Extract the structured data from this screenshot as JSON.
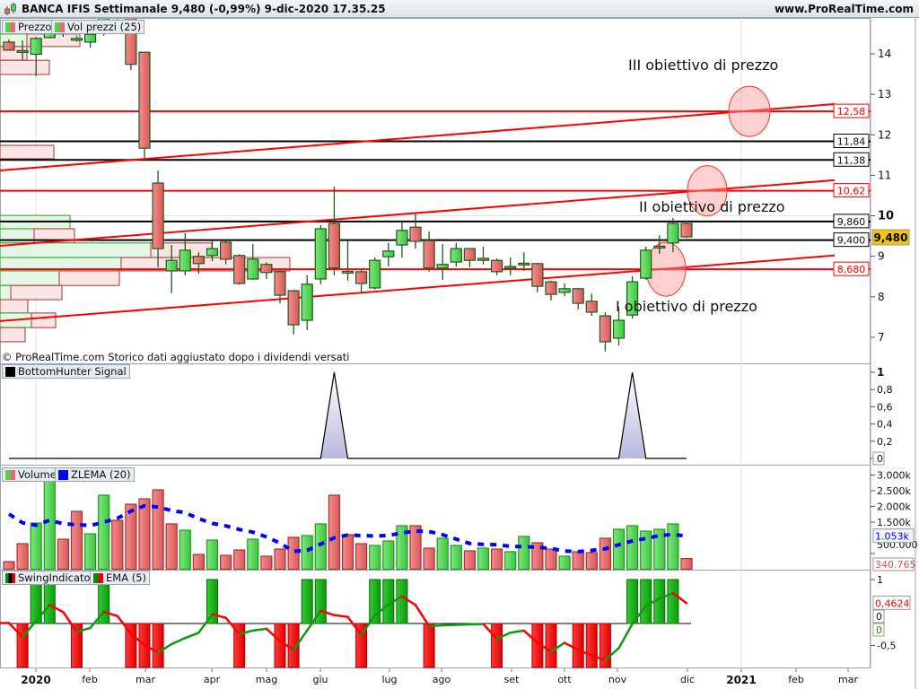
{
  "window": {
    "title": "BANCA IFIS Settimanale 9,480 (-0,99%) 9-dic-2020 17.35.25",
    "site": "www.ProRealTime.com",
    "note": "© ProRealTime.com  Storico dati aggiustato dopo i dividendi versati"
  },
  "colors": {
    "up": "#4fd34f",
    "down": "#e86a6a",
    "line_red": "#ff0000",
    "zlema": "#0000ff",
    "last_price_bg": "#f5c400"
  },
  "legends": {
    "price": "Prezzo",
    "volume_profile": "Vol prezzi (25)",
    "bottom_hunter": "BottomHunter Signal",
    "volume": "Volume",
    "zlema": "ZLEMA (20)",
    "swing": "SwingIndicator",
    "ema": "EMA (5)"
  },
  "price_axis": {
    "ticks": [
      "14",
      "13",
      "12",
      "11",
      "10",
      "9",
      "8",
      "7"
    ],
    "last_price": "9,480"
  },
  "levels": [
    {
      "value": 12.58,
      "label": "12,58",
      "color": "red"
    },
    {
      "value": 11.84,
      "label": "11,84",
      "color": "black"
    },
    {
      "value": 11.38,
      "label": "11,38",
      "color": "black"
    },
    {
      "value": 10.62,
      "label": "10,62",
      "color": "red"
    },
    {
      "value": 9.86,
      "label": "9,860",
      "color": "black"
    },
    {
      "value": 9.4,
      "label": "9,400",
      "color": "black"
    },
    {
      "value": 8.68,
      "label": "8,680",
      "color": "red"
    }
  ],
  "trendlines": [
    {
      "start_price": 11.12,
      "end_price": 12.76
    },
    {
      "start_price": 9.26,
      "end_price": 10.88
    },
    {
      "start_price": 7.4,
      "end_price": 9.02
    }
  ],
  "targets": [
    {
      "label": "III obiettivo di prezzo",
      "price": 12.58
    },
    {
      "label": "II obiettivo di prezzo",
      "price": 10.62
    },
    {
      "label": "I obiettivo di prezzo",
      "price": 8.68
    }
  ],
  "chart_data": {
    "type": "candlestick",
    "x_labels": [
      "2020",
      "feb",
      "mar",
      "apr",
      "mag",
      "giu",
      "lug",
      "ago",
      "set",
      "ott",
      "nov",
      "dic",
      "2021",
      "feb",
      "mar"
    ],
    "ylim": [
      6.5,
      14.9
    ],
    "ohlc": [
      [
        14.29,
        14.35,
        14.09,
        14.09
      ],
      [
        14.08,
        14.33,
        13.85,
        14.07
      ],
      [
        13.99,
        14.42,
        13.45,
        14.38
      ],
      [
        14.4,
        14.8,
        14.38,
        14.62
      ],
      [
        14.62,
        14.75,
        14.42,
        14.55
      ],
      [
        14.37,
        14.45,
        14.3,
        14.38
      ],
      [
        14.29,
        14.52,
        14.15,
        14.48
      ],
      [
        14.5,
        15.0,
        14.45,
        14.9
      ],
      [
        14.9,
        15.1,
        14.8,
        15.0
      ],
      [
        14.95,
        15.0,
        13.6,
        13.74
      ],
      [
        14.04,
        14.05,
        11.42,
        11.67
      ],
      [
        10.81,
        11.12,
        8.73,
        9.19
      ],
      [
        8.64,
        9.28,
        8.09,
        8.9
      ],
      [
        8.64,
        9.57,
        8.53,
        9.15
      ],
      [
        9.0,
        9.1,
        8.57,
        8.82
      ],
      [
        9.02,
        9.39,
        8.88,
        9.19
      ],
      [
        9.35,
        9.4,
        8.8,
        8.93
      ],
      [
        9.02,
        9.05,
        8.3,
        8.33
      ],
      [
        8.44,
        9.3,
        8.42,
        8.93
      ],
      [
        8.8,
        8.85,
        8.44,
        8.6
      ],
      [
        8.62,
        8.65,
        7.84,
        8.04
      ],
      [
        8.15,
        8.17,
        7.07,
        7.31
      ],
      [
        7.42,
        8.53,
        7.18,
        8.31
      ],
      [
        8.44,
        9.77,
        8.31,
        9.68
      ],
      [
        9.81,
        10.72,
        8.53,
        8.71
      ],
      [
        8.63,
        9.39,
        8.4,
        8.62
      ],
      [
        8.62,
        8.66,
        8.09,
        8.33
      ],
      [
        8.22,
        8.97,
        8.18,
        8.9
      ],
      [
        8.99,
        9.33,
        8.75,
        9.13
      ],
      [
        9.28,
        9.86,
        8.97,
        9.64
      ],
      [
        9.72,
        10.06,
        9.19,
        9.37
      ],
      [
        9.39,
        9.61,
        8.62,
        8.71
      ],
      [
        8.71,
        9.3,
        8.42,
        8.8
      ],
      [
        8.86,
        9.33,
        8.75,
        9.19
      ],
      [
        9.19,
        9.2,
        8.73,
        8.9
      ],
      [
        8.95,
        9.24,
        8.8,
        8.9
      ],
      [
        8.9,
        8.95,
        8.53,
        8.62
      ],
      [
        8.71,
        8.97,
        8.53,
        8.75
      ],
      [
        8.83,
        9.1,
        8.64,
        8.82
      ],
      [
        8.82,
        8.84,
        8.11,
        8.26
      ],
      [
        8.37,
        8.4,
        7.91,
        8.06
      ],
      [
        8.11,
        8.33,
        8.02,
        8.2
      ],
      [
        8.2,
        8.22,
        7.69,
        7.84
      ],
      [
        7.89,
        8.08,
        7.53,
        7.62
      ],
      [
        7.53,
        7.62,
        6.65,
        6.89
      ],
      [
        6.98,
        7.75,
        6.8,
        7.42
      ],
      [
        7.55,
        8.51,
        7.46,
        8.37
      ],
      [
        8.46,
        9.24,
        8.42,
        9.15
      ],
      [
        9.25,
        9.52,
        9.06,
        9.24
      ],
      [
        9.33,
        9.95,
        9.1,
        9.81
      ],
      [
        9.81,
        9.86,
        9.45,
        9.48
      ]
    ],
    "volume_profile": [
      {
        "from": 14.18,
        "to": 14.49,
        "up": 30,
        "down": 59
      },
      {
        "from": 13.84,
        "to": 14.18,
        "up": 0,
        "down": 30
      },
      {
        "from": 13.49,
        "to": 13.84,
        "up": 0,
        "down": 55
      },
      {
        "from": 11.41,
        "to": 11.74,
        "up": 0,
        "down": 60
      },
      {
        "from": 9.68,
        "to": 10.01,
        "up": 78,
        "down": 0
      },
      {
        "from": 9.33,
        "to": 9.68,
        "up": 38,
        "down": 45
      },
      {
        "from": 8.97,
        "to": 9.33,
        "up": 168,
        "down": 68
      },
      {
        "from": 8.64,
        "to": 8.97,
        "up": 135,
        "down": 188
      },
      {
        "from": 8.28,
        "to": 8.64,
        "up": 66,
        "down": 67
      },
      {
        "from": 7.93,
        "to": 8.28,
        "up": 12,
        "down": 57
      },
      {
        "from": 7.6,
        "to": 7.93,
        "up": 0,
        "down": 31
      },
      {
        "from": 7.24,
        "to": 7.6,
        "up": 35,
        "down": 27
      },
      {
        "from": 6.89,
        "to": 7.24,
        "up": 0,
        "down": 28
      }
    ],
    "bottom_hunter": {
      "ticks": [
        "1",
        "0,8",
        "0,6",
        "0,4",
        "0,2",
        "0"
      ],
      "signal_weeks": [
        24,
        46
      ]
    },
    "volume": {
      "unit": "k",
      "ticks": [
        "3.000k",
        "2.500k",
        "2.000k",
        "1.500k",
        "500.000"
      ],
      "zlema_label": "1.053k",
      "last_label": "340.765",
      "values": [
        243,
        814,
        1471,
        3000,
        957,
        1843,
        1128,
        2357,
        1557,
        2071,
        2243,
        2528,
        1443,
        1243,
        471,
        928,
        443,
        614,
        957,
        414,
        643,
        1014,
        1071,
        1443,
        2357,
        1100,
        814,
        757,
        900,
        1386,
        1386,
        671,
        986,
        757,
        586,
        671,
        643,
        557,
        1043,
        843,
        643,
        414,
        557,
        529,
        986,
        1271,
        1386,
        1214,
        1271,
        1443,
        341
      ],
      "direction": [
        "d",
        "d",
        "u",
        "u",
        "d",
        "d",
        "u",
        "u",
        "d",
        "d",
        "d",
        "d",
        "d",
        "u",
        "d",
        "u",
        "d",
        "d",
        "u",
        "d",
        "d",
        "d",
        "u",
        "u",
        "d",
        "d",
        "d",
        "u",
        "u",
        "u",
        "d",
        "d",
        "u",
        "u",
        "d",
        "u",
        "d",
        "u",
        "u",
        "d",
        "d",
        "u",
        "d",
        "d",
        "d",
        "u",
        "u",
        "u",
        "u",
        "u",
        "d"
      ],
      "zlema": [
        1757,
        1480,
        1400,
        1560,
        1450,
        1420,
        1390,
        1500,
        1620,
        1850,
        2020,
        1980,
        1870,
        1800,
        1610,
        1460,
        1380,
        1265,
        1180,
        1030,
        830,
        570,
        600,
        800,
        1000,
        1090,
        1071,
        1060,
        1075,
        1157,
        1214,
        1200,
        1100,
        960,
        820,
        790,
        780,
        730,
        720,
        700,
        660,
        580,
        560,
        600,
        650,
        780,
        900,
        980,
        1070,
        1110,
        1053
      ]
    },
    "swing": {
      "ticks": [
        "1",
        "-0,5"
      ],
      "ema_label": "0,4624",
      "zero_label": "0",
      "swing_label": "0",
      "values": [
        0,
        -1,
        1,
        1,
        0,
        -1,
        0,
        1,
        0,
        -1,
        -1,
        -1,
        0,
        0,
        0,
        1,
        0,
        -1,
        0,
        0,
        -1,
        -1,
        1,
        1,
        0,
        0,
        -1,
        1,
        1,
        1,
        0,
        -1,
        0,
        0,
        0,
        0,
        -1,
        0,
        0,
        -1,
        -1,
        0,
        -1,
        -1,
        -1,
        0,
        1,
        1,
        1,
        1,
        0
      ],
      "ema": [
        0.01,
        -0.31,
        0.06,
        0.42,
        0.26,
        -0.19,
        -0.1,
        0.27,
        0.17,
        -0.23,
        -0.49,
        -0.66,
        -0.47,
        -0.33,
        -0.21,
        0.21,
        0.13,
        -0.24,
        -0.16,
        -0.12,
        -0.4,
        -0.6,
        -0.16,
        0.29,
        0.19,
        0.15,
        -0.26,
        0.19,
        0.43,
        0.62,
        0.42,
        -0.06,
        -0.04,
        -0.03,
        -0.02,
        -0.01,
        -0.35,
        -0.21,
        -0.16,
        -0.44,
        -0.64,
        -0.44,
        -0.6,
        -0.73,
        -0.83,
        -0.56,
        -0.01,
        0.4,
        0.57,
        0.69,
        0.4624
      ]
    }
  }
}
